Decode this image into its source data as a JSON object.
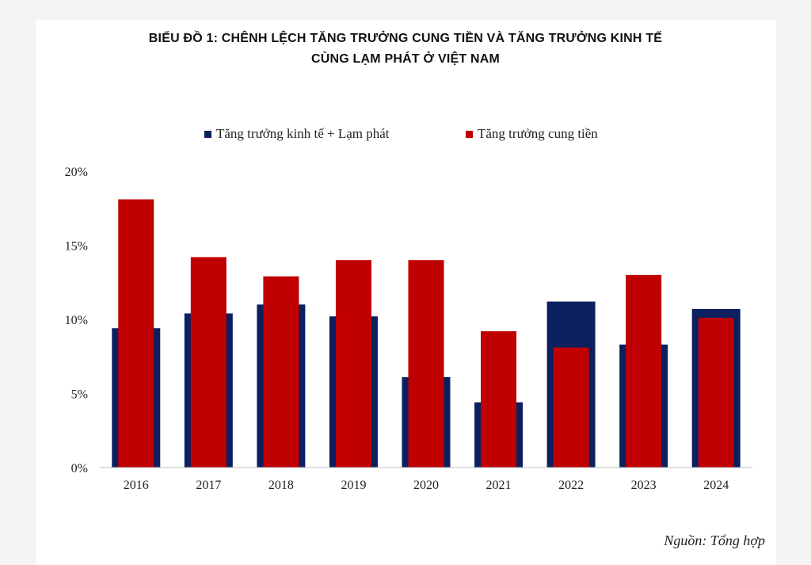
{
  "title_line1": "BIỂU ĐỒ 1: CHÊNH  LỆCH TĂNG  TRƯỞNG CUNG TIỀN VÀ TĂNG TRƯỞNG KINH TẾ",
  "title_line2": "CÙNG  LẠM PHÁT Ở VIỆT NAM",
  "source": "Nguồn: Tổng hợp",
  "colors": {
    "navy": "#0c1f5e",
    "red": "#c00000"
  },
  "chart_data": {
    "type": "bar",
    "title": "BIỂU ĐỒ 1: CHÊNH  LỆCH TĂNG  TRƯỞNG CUNG TIỀN VÀ TĂNG TRƯỞNG KINH TẾ CÙNG  LẠM PHÁT Ở VIỆT NAM",
    "categories": [
      "2016",
      "2017",
      "2018",
      "2019",
      "2020",
      "2021",
      "2022",
      "2023",
      "2024"
    ],
    "series": [
      {
        "name": "Tăng trưởng kinh tế + Lạm phát",
        "color": "#0c1f5e",
        "values": [
          9.4,
          10.4,
          11.0,
          10.2,
          6.1,
          4.4,
          11.2,
          8.3,
          10.7
        ]
      },
      {
        "name": "Tăng trưởng cung tiền",
        "color": "#c00000",
        "values": [
          18.1,
          14.2,
          12.9,
          14.0,
          14.0,
          9.2,
          8.1,
          13.0,
          10.1
        ]
      }
    ],
    "ylim": [
      0,
      20
    ],
    "yticks": [
      0,
      5,
      10,
      15,
      20
    ],
    "ytick_labels": [
      "0%",
      "5%",
      "10%",
      "15%",
      "20%"
    ],
    "legend_position": "top-center",
    "grid": false
  }
}
